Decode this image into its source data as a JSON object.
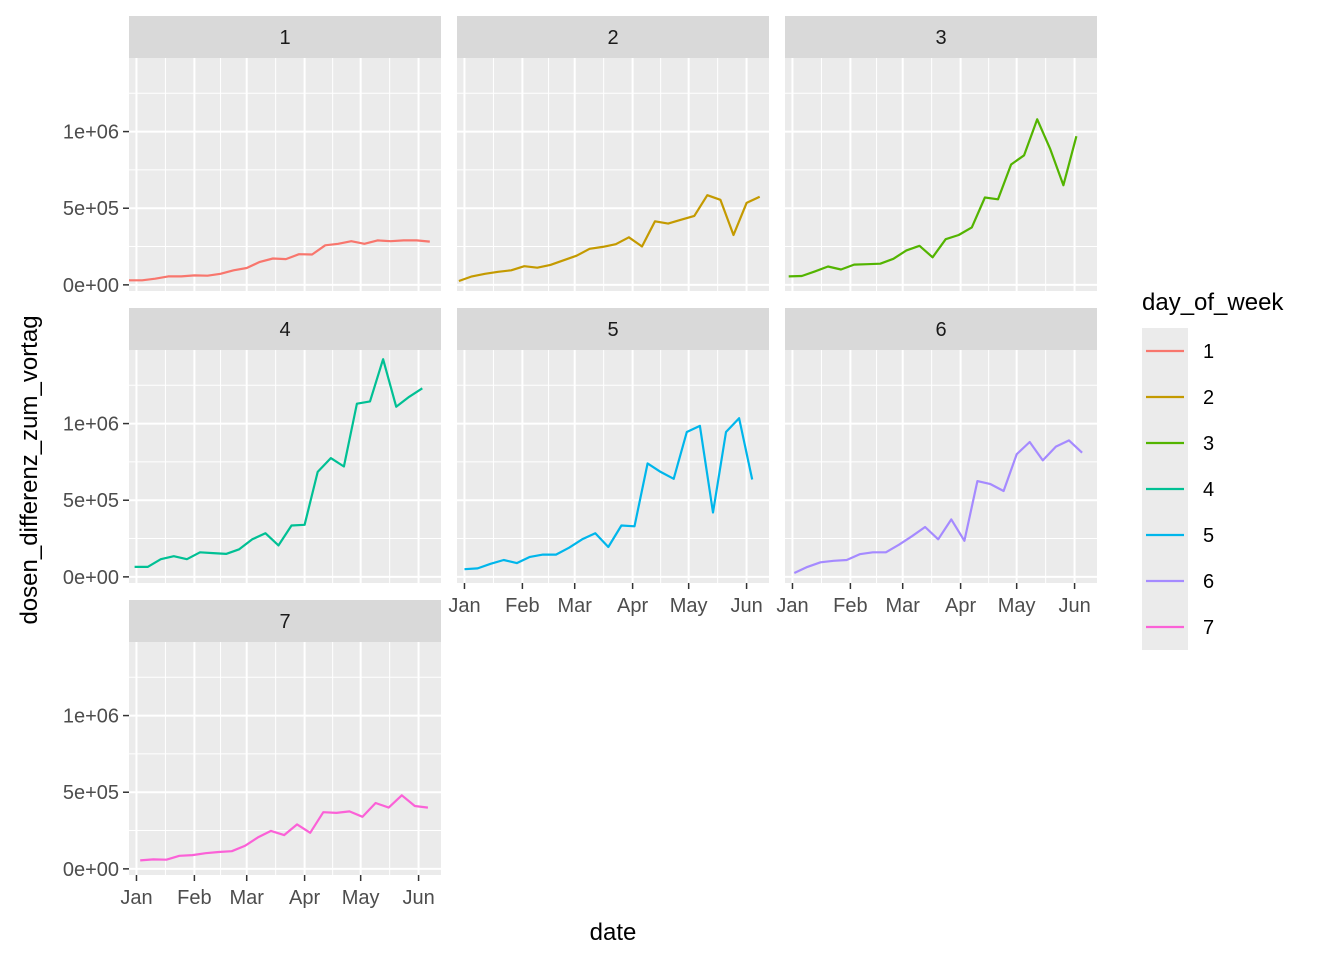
{
  "chart_data": {
    "type": "line",
    "facet_variable": "day_of_week",
    "xlabel": "date",
    "ylabel": "dosen_differenz_zum_vortag",
    "x_tick_labels": [
      "Jan",
      "Feb",
      "Mar",
      "Apr",
      "May",
      "Jun"
    ],
    "x_tick_dates": [
      "2021-01-01",
      "2021-02-01",
      "2021-03-01",
      "2021-04-01",
      "2021-05-01",
      "2021-06-01"
    ],
    "xlim": [
      "2020-12-28",
      "2021-06-13"
    ],
    "y_tick_labels": [
      "0e+00",
      "5e+05",
      "1e+06"
    ],
    "y_tick_values": [
      0,
      500000,
      1000000
    ],
    "ylim": [
      -40000,
      1480000
    ],
    "grid": true,
    "legend": {
      "title": "day_of_week",
      "position": "right",
      "entries": [
        "1",
        "2",
        "3",
        "4",
        "5",
        "6",
        "7"
      ]
    },
    "colors": {
      "1": "#F8766D",
      "2": "#C49A00",
      "3": "#53B400",
      "4": "#00C094",
      "5": "#00B6EB",
      "6": "#A58AFF",
      "7": "#FB61D7"
    },
    "series": [
      {
        "name": "1",
        "x": [
          "2020-12-28",
          "2021-01-04",
          "2021-01-11",
          "2021-01-18",
          "2021-01-25",
          "2021-02-01",
          "2021-02-08",
          "2021-02-15",
          "2021-02-22",
          "2021-03-01",
          "2021-03-08",
          "2021-03-15",
          "2021-03-22",
          "2021-03-29",
          "2021-04-05",
          "2021-04-12",
          "2021-04-19",
          "2021-04-26",
          "2021-05-03",
          "2021-05-10",
          "2021-05-17",
          "2021-05-24",
          "2021-05-31",
          "2021-06-07"
        ],
        "y": [
          30000,
          30000,
          40000,
          55000,
          55000,
          62000,
          60000,
          72000,
          95000,
          110000,
          150000,
          172000,
          168000,
          200000,
          198000,
          258000,
          268000,
          285000,
          268000,
          290000,
          285000,
          290000,
          290000,
          282000
        ]
      },
      {
        "name": "2",
        "x": [
          "2020-12-29",
          "2021-01-05",
          "2021-01-12",
          "2021-01-19",
          "2021-01-26",
          "2021-02-02",
          "2021-02-09",
          "2021-02-16",
          "2021-02-23",
          "2021-03-02",
          "2021-03-09",
          "2021-03-16",
          "2021-03-23",
          "2021-03-30",
          "2021-04-06",
          "2021-04-13",
          "2021-04-20",
          "2021-04-27",
          "2021-05-04",
          "2021-05-11",
          "2021-05-18",
          "2021-05-25",
          "2021-06-01",
          "2021-06-08"
        ],
        "y": [
          25000,
          55000,
          72000,
          85000,
          95000,
          122000,
          112000,
          130000,
          160000,
          190000,
          235000,
          248000,
          265000,
          310000,
          250000,
          415000,
          400000,
          425000,
          450000,
          585000,
          555000,
          325000,
          535000,
          575000
        ]
      },
      {
        "name": "3",
        "x": [
          "2020-12-30",
          "2021-01-06",
          "2021-01-13",
          "2021-01-20",
          "2021-01-27",
          "2021-02-03",
          "2021-02-10",
          "2021-02-17",
          "2021-02-24",
          "2021-03-03",
          "2021-03-10",
          "2021-03-17",
          "2021-03-24",
          "2021-03-31",
          "2021-04-07",
          "2021-04-14",
          "2021-04-21",
          "2021-04-28",
          "2021-05-05",
          "2021-05-12",
          "2021-05-19",
          "2021-05-26",
          "2021-06-02"
        ],
        "y": [
          55000,
          58000,
          88000,
          120000,
          100000,
          132000,
          135000,
          138000,
          170000,
          225000,
          255000,
          180000,
          298000,
          325000,
          375000,
          570000,
          558000,
          785000,
          845000,
          1080000,
          885000,
          650000,
          970000
        ]
      },
      {
        "name": "4",
        "x": [
          "2020-12-31",
          "2021-01-07",
          "2021-01-14",
          "2021-01-21",
          "2021-01-28",
          "2021-02-04",
          "2021-02-11",
          "2021-02-18",
          "2021-02-25",
          "2021-03-04",
          "2021-03-11",
          "2021-03-18",
          "2021-03-25",
          "2021-04-01",
          "2021-04-08",
          "2021-04-15",
          "2021-04-22",
          "2021-04-29",
          "2021-05-06",
          "2021-05-13",
          "2021-05-20",
          "2021-05-27",
          "2021-06-03"
        ],
        "y": [
          65000,
          65000,
          115000,
          135000,
          115000,
          160000,
          155000,
          150000,
          180000,
          245000,
          285000,
          205000,
          335000,
          340000,
          685000,
          775000,
          720000,
          1130000,
          1145000,
          1420000,
          1110000,
          1175000,
          1230000
        ]
      },
      {
        "name": "5",
        "x": [
          "2021-01-01",
          "2021-01-08",
          "2021-01-15",
          "2021-01-22",
          "2021-01-29",
          "2021-02-05",
          "2021-02-12",
          "2021-02-19",
          "2021-02-26",
          "2021-03-05",
          "2021-03-12",
          "2021-03-19",
          "2021-03-26",
          "2021-04-02",
          "2021-04-09",
          "2021-04-16",
          "2021-04-23",
          "2021-04-30",
          "2021-05-07",
          "2021-05-14",
          "2021-05-21",
          "2021-05-28",
          "2021-06-04"
        ],
        "y": [
          50000,
          55000,
          85000,
          110000,
          90000,
          130000,
          145000,
          145000,
          190000,
          245000,
          285000,
          195000,
          335000,
          330000,
          740000,
          685000,
          640000,
          945000,
          985000,
          420000,
          945000,
          1035000,
          635000
        ]
      },
      {
        "name": "6",
        "x": [
          "2021-01-02",
          "2021-01-09",
          "2021-01-16",
          "2021-01-23",
          "2021-01-30",
          "2021-02-06",
          "2021-02-13",
          "2021-02-20",
          "2021-02-27",
          "2021-03-06",
          "2021-03-13",
          "2021-03-20",
          "2021-03-27",
          "2021-04-03",
          "2021-04-10",
          "2021-04-17",
          "2021-04-24",
          "2021-05-01",
          "2021-05-08",
          "2021-05-15",
          "2021-05-22",
          "2021-05-29",
          "2021-06-05"
        ],
        "y": [
          25000,
          65000,
          95000,
          105000,
          110000,
          148000,
          160000,
          160000,
          210000,
          265000,
          325000,
          245000,
          375000,
          235000,
          625000,
          605000,
          560000,
          800000,
          880000,
          760000,
          850000,
          890000,
          810000
        ]
      },
      {
        "name": "7",
        "x": [
          "2021-01-03",
          "2021-01-10",
          "2021-01-17",
          "2021-01-24",
          "2021-01-31",
          "2021-02-07",
          "2021-02-14",
          "2021-02-21",
          "2021-02-28",
          "2021-03-07",
          "2021-03-14",
          "2021-03-21",
          "2021-03-28",
          "2021-04-04",
          "2021-04-11",
          "2021-04-18",
          "2021-04-25",
          "2021-05-02",
          "2021-05-09",
          "2021-05-16",
          "2021-05-23",
          "2021-05-30",
          "2021-06-06"
        ],
        "y": [
          55000,
          62000,
          60000,
          85000,
          90000,
          102000,
          110000,
          115000,
          150000,
          205000,
          248000,
          220000,
          290000,
          235000,
          370000,
          365000,
          375000,
          340000,
          430000,
          400000,
          480000,
          410000,
          400000
        ]
      }
    ]
  }
}
